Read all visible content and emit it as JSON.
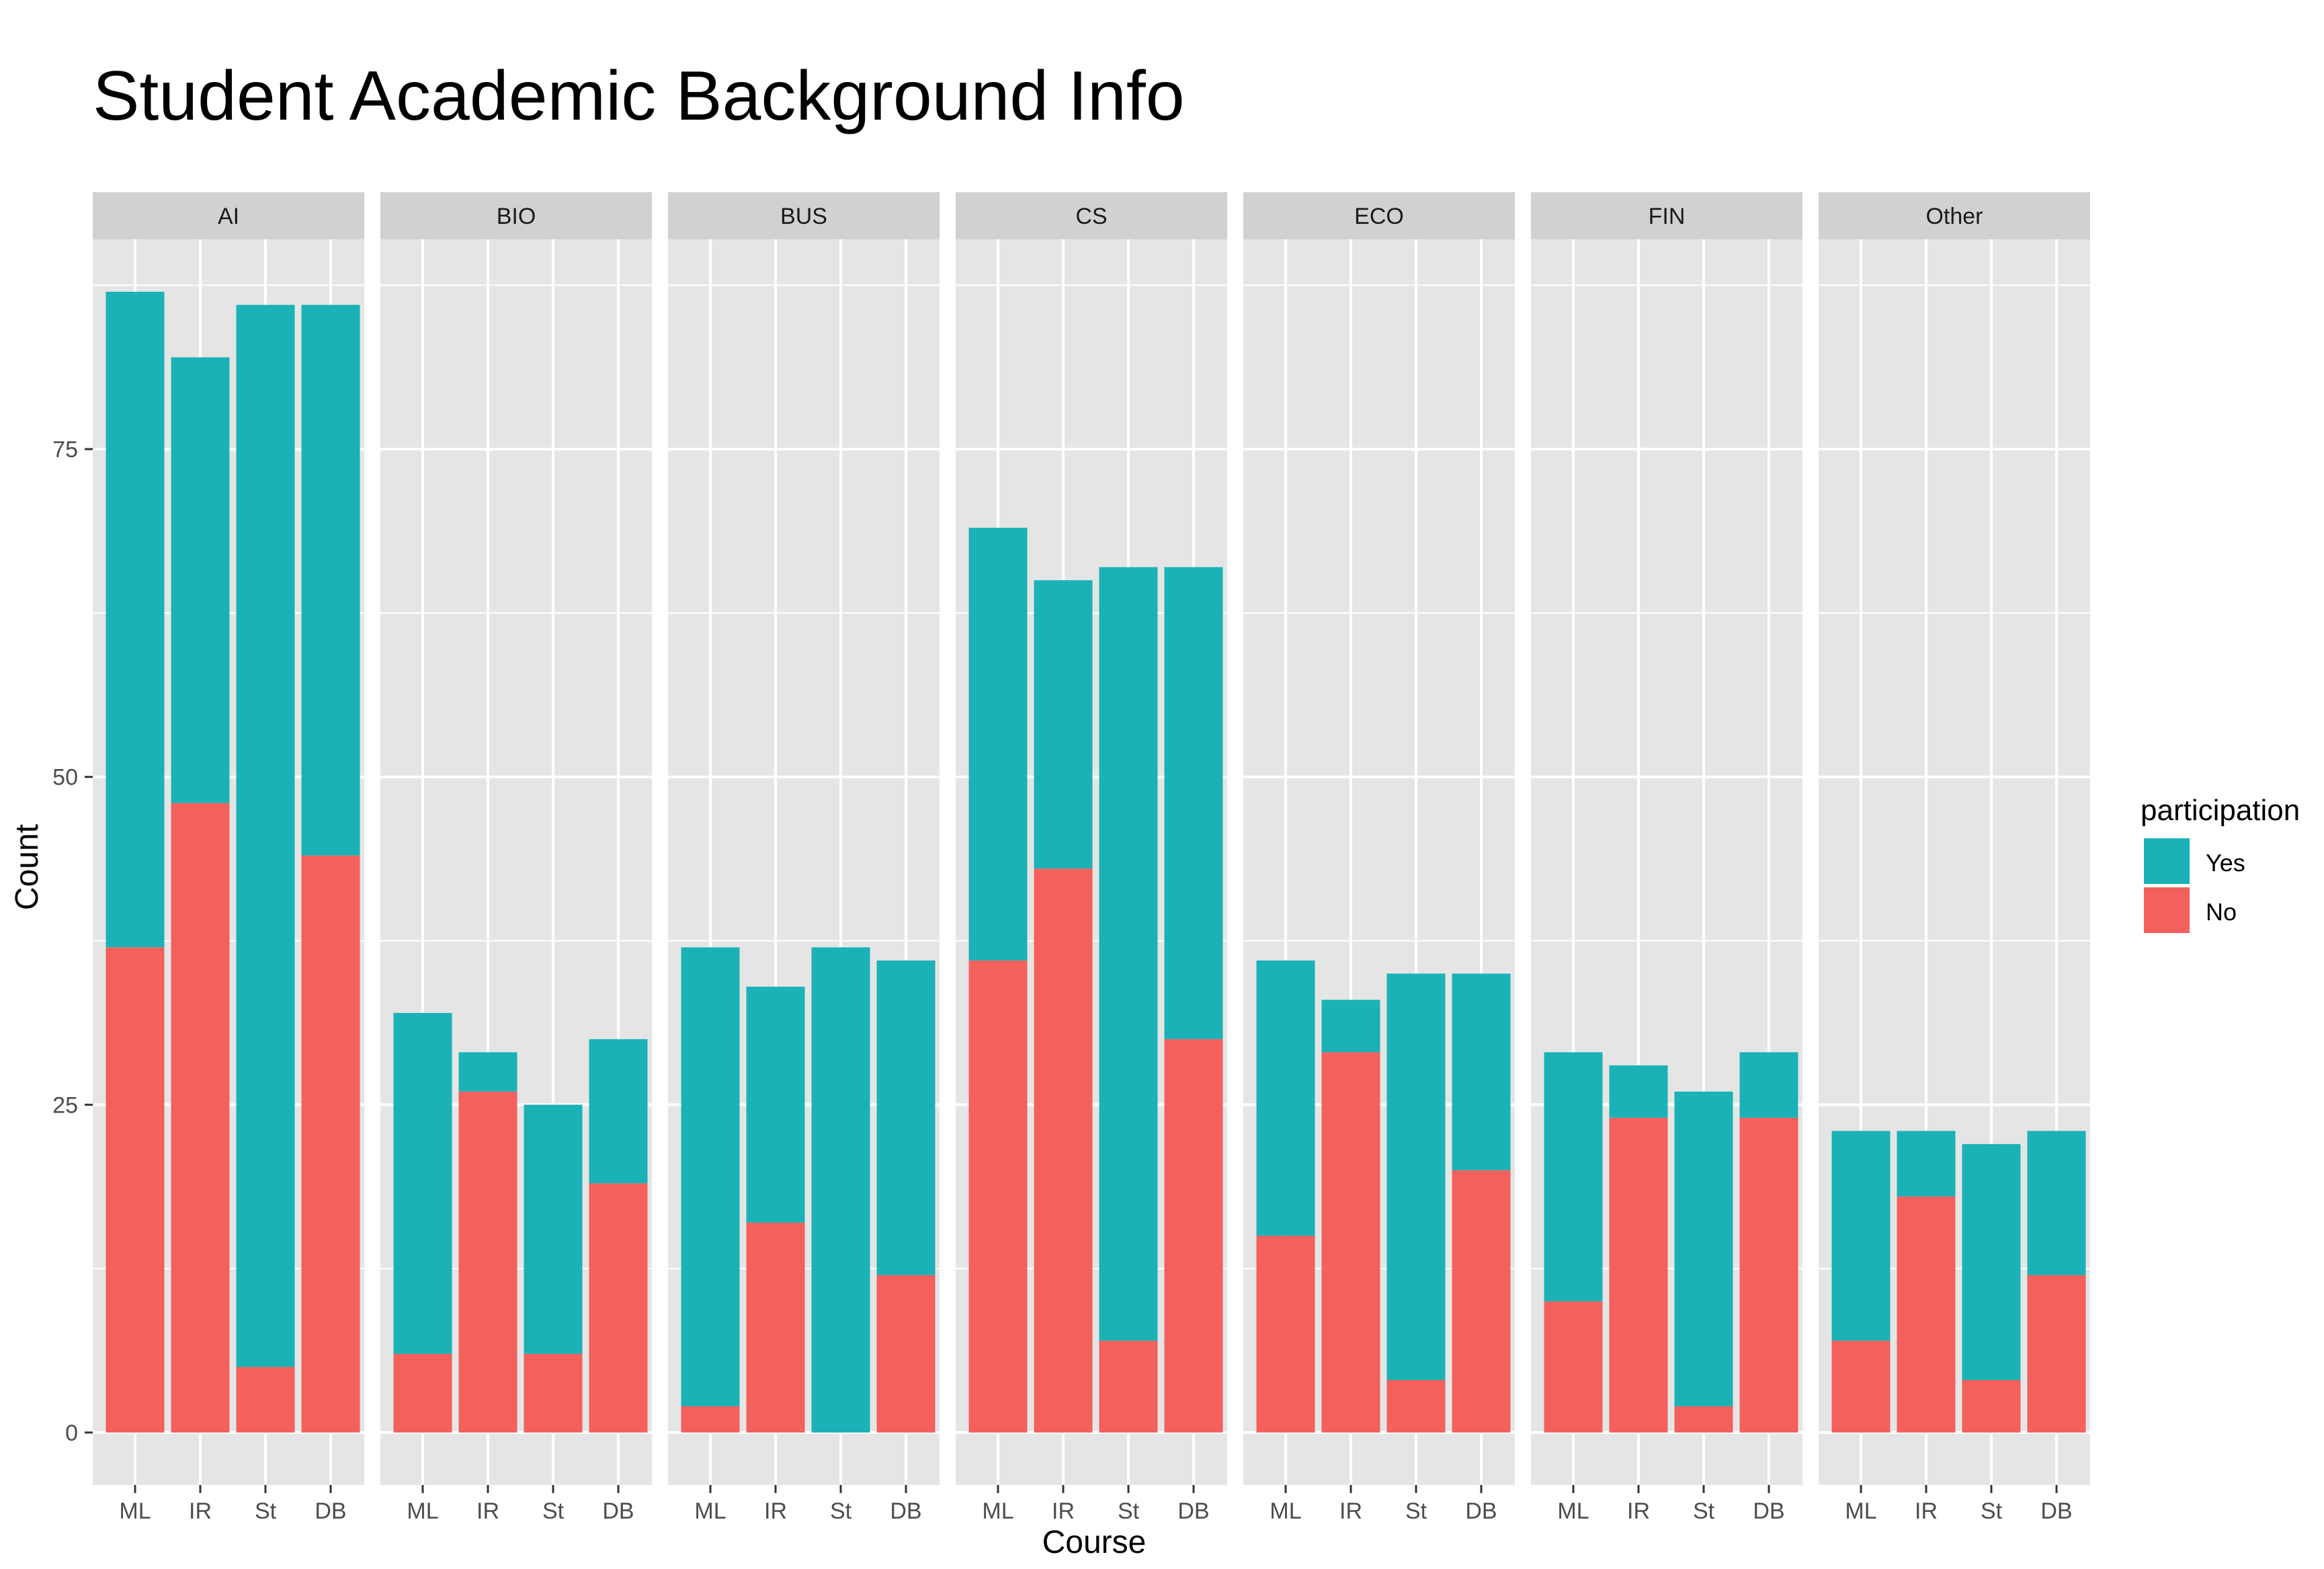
{
  "chart_data": {
    "type": "bar",
    "stacked": true,
    "faceted": true,
    "title": "Student Academic Background Info",
    "xlabel": "Course",
    "ylabel": "Count",
    "ylim": [
      -4,
      91
    ],
    "yticks": [
      0,
      25,
      50,
      75
    ],
    "categories": [
      "ML",
      "IR",
      "St",
      "DB"
    ],
    "legend": {
      "title": "participation",
      "position": "right",
      "items": [
        {
          "name": "Yes",
          "color": "#1AB2B6"
        },
        {
          "name": "No",
          "color": "#F4605C"
        }
      ]
    },
    "colors": {
      "panel_bg": "#E5E5E5",
      "strip_bg": "#D1D1D1",
      "grid": "#FFFFFF",
      "no": "#F4605C",
      "yes": "#1AB2B6"
    },
    "facets": [
      {
        "label": "AI",
        "no": [
          37,
          48,
          5,
          44
        ],
        "total": [
          87,
          82,
          86,
          86
        ]
      },
      {
        "label": "BIO",
        "no": [
          6,
          26,
          6,
          19
        ],
        "total": [
          32,
          29,
          25,
          30
        ]
      },
      {
        "label": "BUS",
        "no": [
          2,
          16,
          0,
          12
        ],
        "total": [
          37,
          34,
          37,
          36
        ]
      },
      {
        "label": "CS",
        "no": [
          36,
          43,
          7,
          30
        ],
        "total": [
          69,
          65,
          66,
          66
        ]
      },
      {
        "label": "ECO",
        "no": [
          15,
          29,
          4,
          20
        ],
        "total": [
          36,
          33,
          35,
          35
        ]
      },
      {
        "label": "FIN",
        "no": [
          10,
          24,
          2,
          24
        ],
        "total": [
          29,
          28,
          26,
          29
        ]
      },
      {
        "label": "Other",
        "no": [
          7,
          18,
          4,
          12
        ],
        "total": [
          23,
          23,
          22,
          23
        ]
      }
    ]
  }
}
